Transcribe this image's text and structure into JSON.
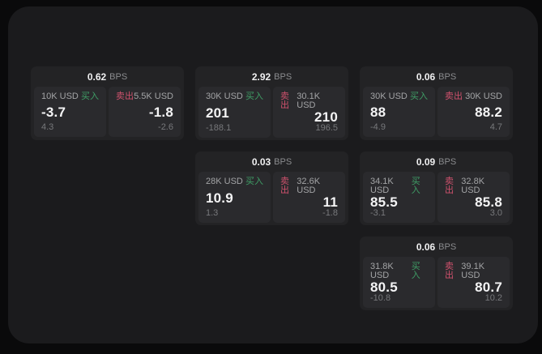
{
  "labels": {
    "bps_unit": "BPS",
    "buy": "买入",
    "sell": "卖出"
  },
  "colors": {
    "background": "#0a0a0b",
    "surface": "#1b1b1d",
    "card": "#232325",
    "tile": "#2a2a2d",
    "buy_green": "#3f9e66",
    "sell_red": "#cf516d"
  },
  "cards": [
    {
      "bps_value": "0.62",
      "buy": {
        "size": "10K USD",
        "price": "-3.7",
        "delta": "4.3"
      },
      "sell": {
        "size": "5.5K USD",
        "price": "-1.8",
        "delta": "-2.6"
      }
    },
    {
      "bps_value": "2.92",
      "buy": {
        "size": "30K USD",
        "price": "201",
        "delta": "-188.1"
      },
      "sell": {
        "size": "30.1K USD",
        "price": "210",
        "delta": "196.5"
      }
    },
    {
      "bps_value": "0.06",
      "buy": {
        "size": "30K USD",
        "price": "88",
        "delta": "-4.9"
      },
      "sell": {
        "size": "30K USD",
        "price": "88.2",
        "delta": "4.7"
      }
    },
    {
      "bps_value": "0.03",
      "buy": {
        "size": "28K USD",
        "price": "10.9",
        "delta": "1.3"
      },
      "sell": {
        "size": "32.6K USD",
        "price": "11",
        "delta": "-1.8"
      }
    },
    {
      "bps_value": "0.09",
      "buy": {
        "size": "34.1K USD",
        "price": "85.5",
        "delta": "-3.1"
      },
      "sell": {
        "size": "32.8K USD",
        "price": "85.8",
        "delta": "3.0"
      }
    },
    {
      "bps_value": "0.06",
      "buy": {
        "size": "31.8K USD",
        "price": "80.5",
        "delta": "-10.8"
      },
      "sell": {
        "size": "39.1K USD",
        "price": "80.7",
        "delta": "10.2"
      }
    }
  ]
}
